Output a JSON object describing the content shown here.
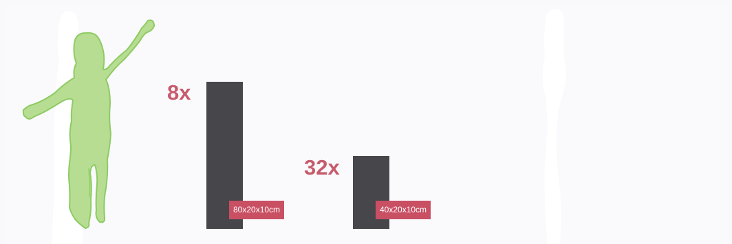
{
  "illustration": {
    "figure_color": "#b8df97",
    "figure_outline": "#93cc6f",
    "block_color": "#47464b",
    "accent_color": "#c94f63"
  },
  "items": [
    {
      "count": "8x",
      "dimensions": "80x20x10cm"
    },
    {
      "count": "32x",
      "dimensions": "40x20x10cm"
    }
  ]
}
